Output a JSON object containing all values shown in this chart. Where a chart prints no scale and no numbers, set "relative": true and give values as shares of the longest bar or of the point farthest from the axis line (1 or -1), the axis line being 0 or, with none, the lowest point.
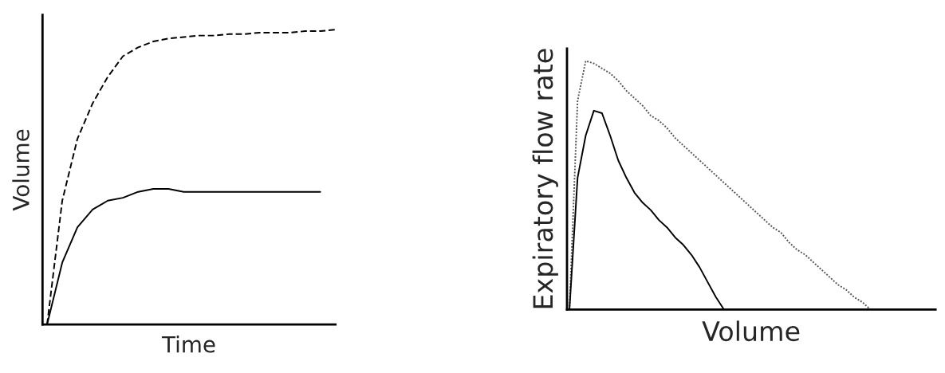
{
  "chart_data": [
    {
      "type": "line",
      "relative": true,
      "xlabel": "Time",
      "ylabel": "Volume",
      "tick_labels": false,
      "categories": [
        null,
        null,
        null,
        null,
        null,
        null,
        null,
        null,
        null,
        null,
        null,
        null,
        null,
        null,
        null,
        null,
        null,
        null,
        null,
        null
      ],
      "series": [
        {
          "color": "#000000",
          "line_style": "dashed",
          "values": [
            0,
            0.42,
            0.63,
            0.75,
            0.84,
            0.91,
            0.94,
            0.96,
            0.97,
            0.975,
            0.98,
            0.98,
            0.985,
            0.985,
            0.99,
            0.99,
            0.99,
            0.995,
            0.995,
            1.0
          ]
        },
        {
          "color": "#000000",
          "line_style": "solid",
          "values": [
            0,
            0.21,
            0.33,
            0.39,
            0.42,
            0.43,
            0.45,
            0.46,
            0.46,
            0.45,
            0.45,
            0.45,
            0.45,
            0.45,
            0.45,
            0.45,
            0.45,
            0.45,
            0.45,
            null
          ]
        }
      ]
    },
    {
      "type": "line",
      "relative": true,
      "xlabel": "Volume",
      "ylabel": "Expiratory flow rate",
      "tick_labels": false,
      "categories": [
        null,
        null,
        null,
        null,
        null,
        null,
        null,
        null,
        null,
        null,
        null,
        null,
        null,
        null,
        null,
        null,
        null,
        null,
        null,
        null,
        null,
        null,
        null,
        null,
        null,
        null,
        null,
        null,
        null,
        null,
        null,
        null,
        null,
        null,
        null,
        null,
        null,
        null,
        null,
        null,
        null,
        null,
        null,
        null,
        null,
        null
      ],
      "series": [
        {
          "color": "#555555",
          "line_style": "dotted",
          "values": [
            0,
            0.84,
            1.0,
            0.99,
            0.97,
            0.95,
            0.92,
            0.88,
            0.85,
            0.82,
            0.78,
            0.76,
            0.73,
            0.69,
            0.66,
            0.63,
            0.6,
            0.57,
            0.54,
            0.51,
            0.48,
            0.45,
            0.42,
            0.39,
            0.36,
            0.33,
            0.31,
            0.27,
            0.24,
            0.22,
            0.19,
            0.16,
            0.13,
            0.1,
            0.08,
            0.05,
            0.03,
            0,
            null,
            null,
            null,
            null,
            null,
            null,
            null,
            null
          ]
        },
        {
          "color": "#000000",
          "line_style": "solid",
          "values": [
            0,
            0.53,
            0.7,
            0.8,
            0.79,
            0.7,
            0.6,
            0.53,
            0.47,
            0.43,
            0.4,
            0.36,
            0.33,
            0.29,
            0.26,
            0.22,
            0.17,
            0.11,
            0.05,
            0,
            null,
            null,
            null,
            null,
            null,
            null,
            null,
            null,
            null,
            null,
            null,
            null,
            null,
            null,
            null,
            null,
            null,
            null,
            null,
            null,
            null,
            null,
            null,
            null,
            null,
            null
          ]
        }
      ]
    }
  ]
}
